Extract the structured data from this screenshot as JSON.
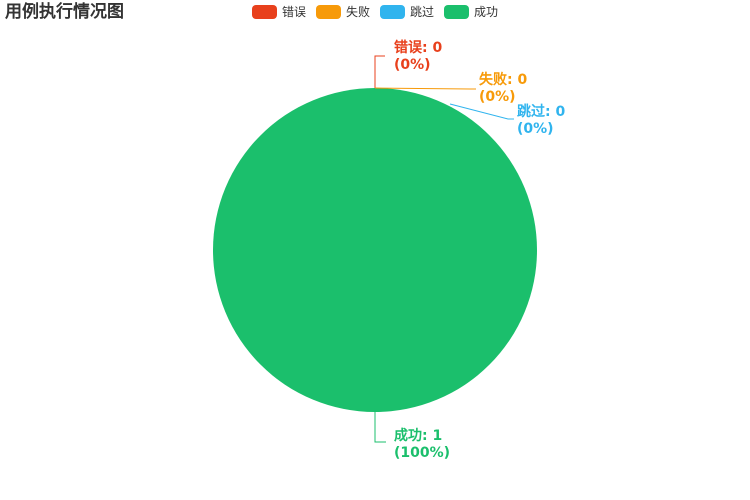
{
  "chart_data": {
    "type": "pie",
    "title": "用例执行情况图",
    "categories": [
      "错误",
      "失败",
      "跳过",
      "成功"
    ],
    "values": [
      0,
      0,
      0,
      1
    ],
    "percent_labels": [
      "(0%)",
      "(0%)",
      "(0%)",
      "(100%)"
    ],
    "colors": [
      "#e8401c",
      "#f79a09",
      "#30b4ee",
      "#1bbf6c"
    ],
    "legend_position": "top-center"
  }
}
